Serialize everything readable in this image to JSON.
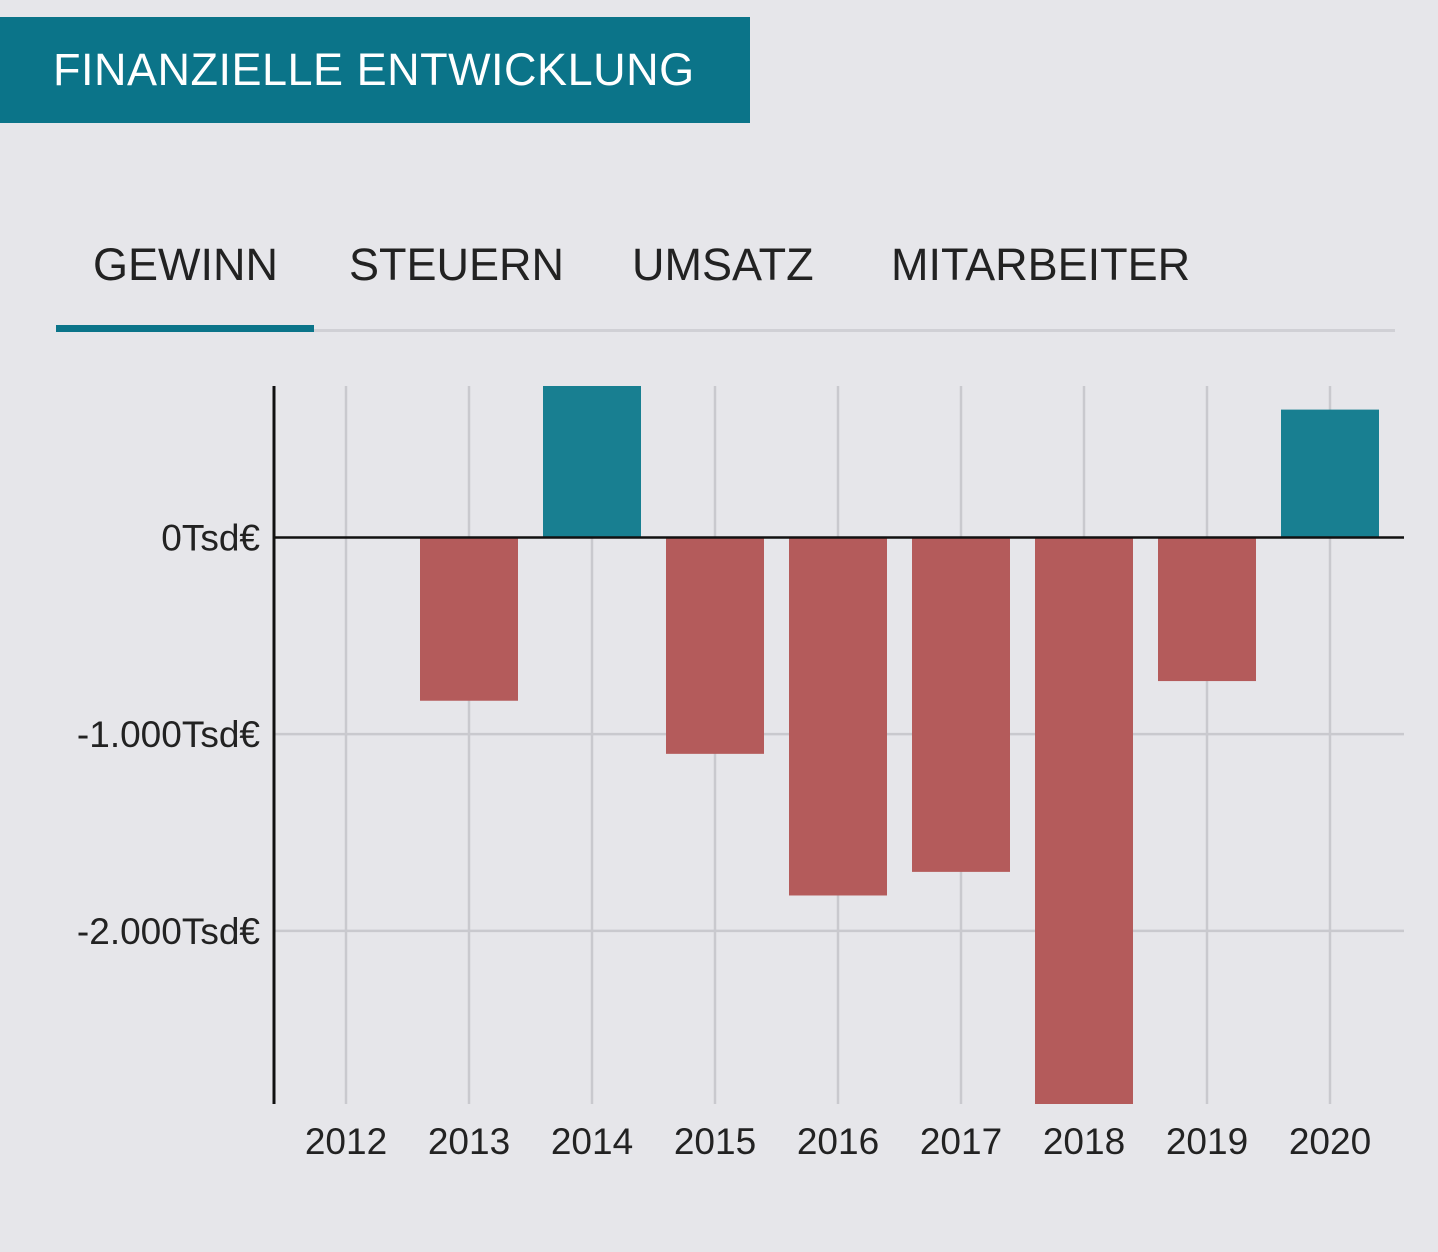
{
  "header": {
    "title": "FINANZIELLE ENTWICKLUNG"
  },
  "tabs": [
    {
      "label": "GEWINN",
      "active": true
    },
    {
      "label": "STEUERN",
      "active": false
    },
    {
      "label": "UMSATZ",
      "active": false
    },
    {
      "label": "MITARBEITER",
      "active": false
    }
  ],
  "colors": {
    "accent": "#0b7489",
    "positive_bar": "#187f91",
    "negative_bar": "#b45b5b",
    "background": "#e6e6ea"
  },
  "chart_data": {
    "type": "bar",
    "categories": [
      "2012",
      "2013",
      "2014",
      "2015",
      "2016",
      "2017",
      "2018",
      "2019",
      "2020"
    ],
    "values": [
      0,
      -830,
      770,
      -1100,
      -1820,
      -1700,
      -2880,
      -730,
      650
    ],
    "y_ticks": [
      0,
      -1000,
      -2000
    ],
    "y_tick_labels": [
      "0Tsd€",
      "-1.000Tsd€",
      "-2.000Tsd€"
    ],
    "ylim": [
      -2880,
      770
    ],
    "grid": true
  }
}
